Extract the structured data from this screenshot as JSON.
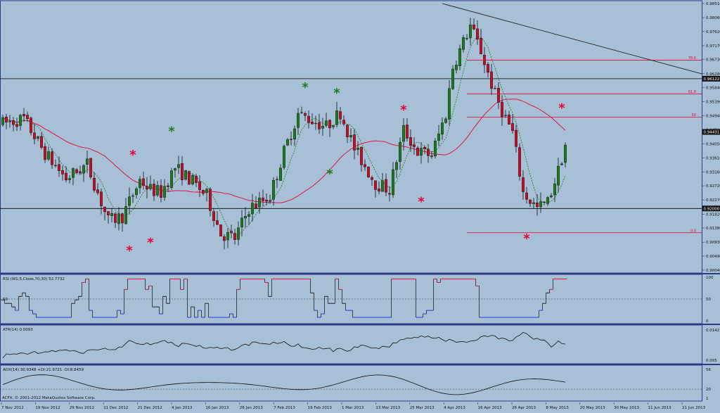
{
  "chart_data": [
    {
      "type": "candlestick",
      "panel": "main-price",
      "ylim": [
        0.9004,
        0.9851
      ],
      "price_scale_ticks": [
        "0.98510",
        "0.98060",
        "0.97620",
        "0.97170",
        "0.96730",
        "0.96280",
        "0.95840",
        "0.95390",
        "0.94940",
        "0.94500",
        "0.94050",
        "0.93610",
        "0.93160",
        "0.92720",
        "0.92270",
        "0.91820",
        "0.91380",
        "0.90930",
        "0.90490",
        "0.90040"
      ],
      "price_badges": [
        {
          "label": "0.96122",
          "value": 0.96122
        },
        {
          "label": "0.94431",
          "value": 0.94431
        },
        {
          "label": "0.92000",
          "value": 0.92
        }
      ],
      "horizontal_lines": [
        {
          "value": 0.96122,
          "color": "#000000"
        },
        {
          "value": 0.92,
          "color": "#000000"
        }
      ],
      "fibonacci_levels": [
        {
          "label": "78.6",
          "value": 0.9671,
          "x_from_index": 132
        },
        {
          "label": "61.8",
          "value": 0.9564,
          "x_from_index": 132
        },
        {
          "label": "50",
          "value": 0.949,
          "x_from_index": 132
        },
        {
          "label": "0.0",
          "value": 0.9123,
          "x_from_index": 132
        }
      ],
      "trendline": {
        "from": {
          "index": 125,
          "value": 0.9851
        },
        "to": {
          "index": 199,
          "value": 0.9627
        }
      },
      "star_markers": [
        {
          "index": 37,
          "value": 0.9371,
          "color": "#e8003a"
        },
        {
          "index": 36,
          "value": 0.9067,
          "color": "#e8003a"
        },
        {
          "index": 42,
          "value": 0.9092,
          "color": "#e8003a"
        },
        {
          "index": 48,
          "value": 0.9445,
          "color": "#1f7a1f"
        },
        {
          "index": 86,
          "value": 0.9585,
          "color": "#1f7a1f"
        },
        {
          "index": 95,
          "value": 0.9567,
          "color": "#1f7a1f"
        },
        {
          "index": 93,
          "value": 0.931,
          "color": "#1f7a1f"
        },
        {
          "index": 114,
          "value": 0.9513,
          "color": "#e8003a"
        },
        {
          "index": 119,
          "value": 0.9222,
          "color": "#e8003a"
        },
        {
          "index": 149,
          "value": 0.9105,
          "color": "#e8003a"
        },
        {
          "index": 159,
          "value": 0.9519,
          "color": "#e8003a"
        }
      ],
      "candles": {
        "count": 161,
        "index_step_days": 1,
        "ohlc_encoding": "generated_by_script",
        "note": ""
      },
      "moving_averages": [
        {
          "kind": "slow",
          "color": "#e8003a"
        },
        {
          "kind": "fast",
          "color": "#1f7a1f",
          "style": "dashed"
        }
      ]
    },
    {
      "type": "line",
      "panel": "rsi",
      "label": "RSI (W1,5,Close,70,30) 52.7732",
      "ylim": [
        0,
        100
      ],
      "ticks": [
        "100",
        "50",
        "0"
      ],
      "levels": [
        {
          "label": "50",
          "value": 50
        }
      ]
    },
    {
      "type": "line",
      "panel": "atr",
      "label": "ATR(14) 0.0093",
      "ticks": [
        "0.0142",
        "0.005"
      ]
    },
    {
      "type": "line",
      "panel": "adx",
      "label": "ADX(14) 30.9348 +DI:21.9721 -DI:8.8459",
      "ticks": [
        "56",
        "20",
        "1"
      ]
    }
  ],
  "x_axis_labels": [
    "7 Nov 2012",
    "19 Nov 2012",
    "29 Nov 2012",
    "11 Dec 2012",
    "21 Dec 2012",
    "4 Jan 2013",
    "16 Jan 2013",
    "28 Jan 2013",
    "7 Feb 2013",
    "19 Feb 2013",
    "1 Mar 2013",
    "13 Mar 2013",
    "25 Mar 2013",
    "4 Apr 2013",
    "16 Apr 2013",
    "26 Apr 2013",
    "8 May 2013",
    "20 May 2013",
    "30 May 2013",
    "11 Jun 2013",
    "21 Jun 2013"
  ],
  "copyright": "ACFX, © 2001-2012 MetaQuotes Software Corp.",
  "colors": {
    "background": "#a7c0d6",
    "bull": "#1f7a1f",
    "bear": "#c0102a",
    "panel_separator": "#2b3a8a",
    "rsi_high": "#e8003a",
    "rsi_low": "#1b2be8"
  }
}
